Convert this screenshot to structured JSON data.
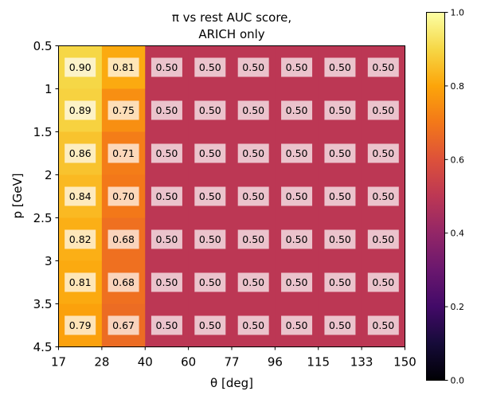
{
  "chart_data": {
    "type": "heatmap",
    "title_lines": [
      "π vs rest AUC score,",
      "ARICH only"
    ],
    "xlabel": "θ [deg]",
    "ylabel": "p [GeV]",
    "x_edges": [
      "17",
      "28",
      "40",
      "60",
      "77",
      "96",
      "115",
      "133",
      "150"
    ],
    "y_ticks": [
      "0.5",
      "1",
      "1.5",
      "2",
      "2.5",
      "3",
      "3.5",
      "4.5"
    ],
    "values": [
      [
        0.9,
        0.81,
        0.5,
        0.5,
        0.5,
        0.5,
        0.5,
        0.5
      ],
      [
        0.89,
        0.75,
        0.5,
        0.5,
        0.5,
        0.5,
        0.5,
        0.5
      ],
      [
        0.86,
        0.71,
        0.5,
        0.5,
        0.5,
        0.5,
        0.5,
        0.5
      ],
      [
        0.84,
        0.7,
        0.5,
        0.5,
        0.5,
        0.5,
        0.5,
        0.5
      ],
      [
        0.82,
        0.68,
        0.5,
        0.5,
        0.5,
        0.5,
        0.5,
        0.5
      ],
      [
        0.81,
        0.68,
        0.5,
        0.5,
        0.5,
        0.5,
        0.5,
        0.5
      ],
      [
        0.79,
        0.67,
        0.5,
        0.5,
        0.5,
        0.5,
        0.5,
        0.5
      ]
    ],
    "cell_labels": [
      [
        "0.90",
        "0.81",
        "0.50",
        "0.50",
        "0.50",
        "0.50",
        "0.50",
        "0.50"
      ],
      [
        "0.89",
        "0.75",
        "0.50",
        "0.50",
        "0.50",
        "0.50",
        "0.50",
        "0.50"
      ],
      [
        "0.86",
        "0.71",
        "0.50",
        "0.50",
        "0.50",
        "0.50",
        "0.50",
        "0.50"
      ],
      [
        "0.84",
        "0.70",
        "0.50",
        "0.50",
        "0.50",
        "0.50",
        "0.50",
        "0.50"
      ],
      [
        "0.82",
        "0.68",
        "0.50",
        "0.50",
        "0.50",
        "0.50",
        "0.50",
        "0.50"
      ],
      [
        "0.81",
        "0.68",
        "0.50",
        "0.50",
        "0.50",
        "0.50",
        "0.50",
        "0.50"
      ],
      [
        "0.79",
        "0.67",
        "0.50",
        "0.50",
        "0.50",
        "0.50",
        "0.50",
        "0.50"
      ]
    ],
    "colormap": "inferno",
    "vmin": 0.0,
    "vmax": 1.0,
    "colorbar_ticks": [
      "0.0",
      "0.2",
      "0.4",
      "0.6",
      "0.8",
      "1.0"
    ],
    "label_box_color": "#ffffff"
  }
}
